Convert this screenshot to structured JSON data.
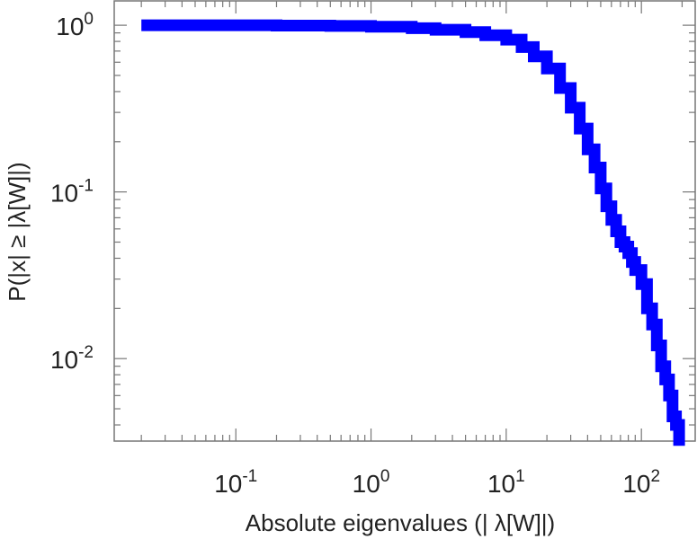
{
  "chart_data": {
    "type": "line",
    "title": "",
    "xlabel": "Absolute eigenvalues (|     λ[W]|)",
    "ylabel": "P(|x|  ≥ |λ[W]|)",
    "x_scale": "log",
    "y_scale": "log",
    "xlim": [
      0.0126,
      250
    ],
    "ylim": [
      0.0032,
      1.4
    ],
    "grid": false,
    "legend": "none",
    "line_color": "#0000ff",
    "x_ticks": [
      {
        "value": 0.1,
        "base": "10",
        "exp": "-1"
      },
      {
        "value": 1,
        "base": "10",
        "exp": "0"
      },
      {
        "value": 10,
        "base": "10",
        "exp": "1"
      },
      {
        "value": 100,
        "base": "10",
        "exp": "2"
      }
    ],
    "y_ticks": [
      {
        "value": 1,
        "base": "10",
        "exp": "0"
      },
      {
        "value": 0.1,
        "base": "10",
        "exp": "-1"
      },
      {
        "value": 0.01,
        "base": "10",
        "exp": "-2"
      }
    ],
    "series": [
      {
        "x": [
          0.02,
          0.05,
          0.1,
          0.2,
          0.5,
          1,
          2,
          3,
          5,
          7,
          10,
          13,
          16,
          20,
          25,
          30,
          35,
          40,
          45,
          50,
          55,
          60,
          65,
          70,
          75,
          80,
          85,
          90,
          100,
          110,
          120,
          130,
          140,
          150,
          160,
          170,
          180,
          190
        ],
        "y": [
          1.0,
          1.0,
          1.0,
          0.995,
          0.99,
          0.98,
          0.96,
          0.94,
          0.91,
          0.87,
          0.82,
          0.74,
          0.65,
          0.55,
          0.42,
          0.32,
          0.24,
          0.18,
          0.14,
          0.105,
          0.082,
          0.068,
          0.058,
          0.05,
          0.047,
          0.043,
          0.038,
          0.034,
          0.028,
          0.02,
          0.016,
          0.012,
          0.009,
          0.0075,
          0.006,
          0.0045,
          0.004,
          0.003
        ]
      }
    ]
  }
}
